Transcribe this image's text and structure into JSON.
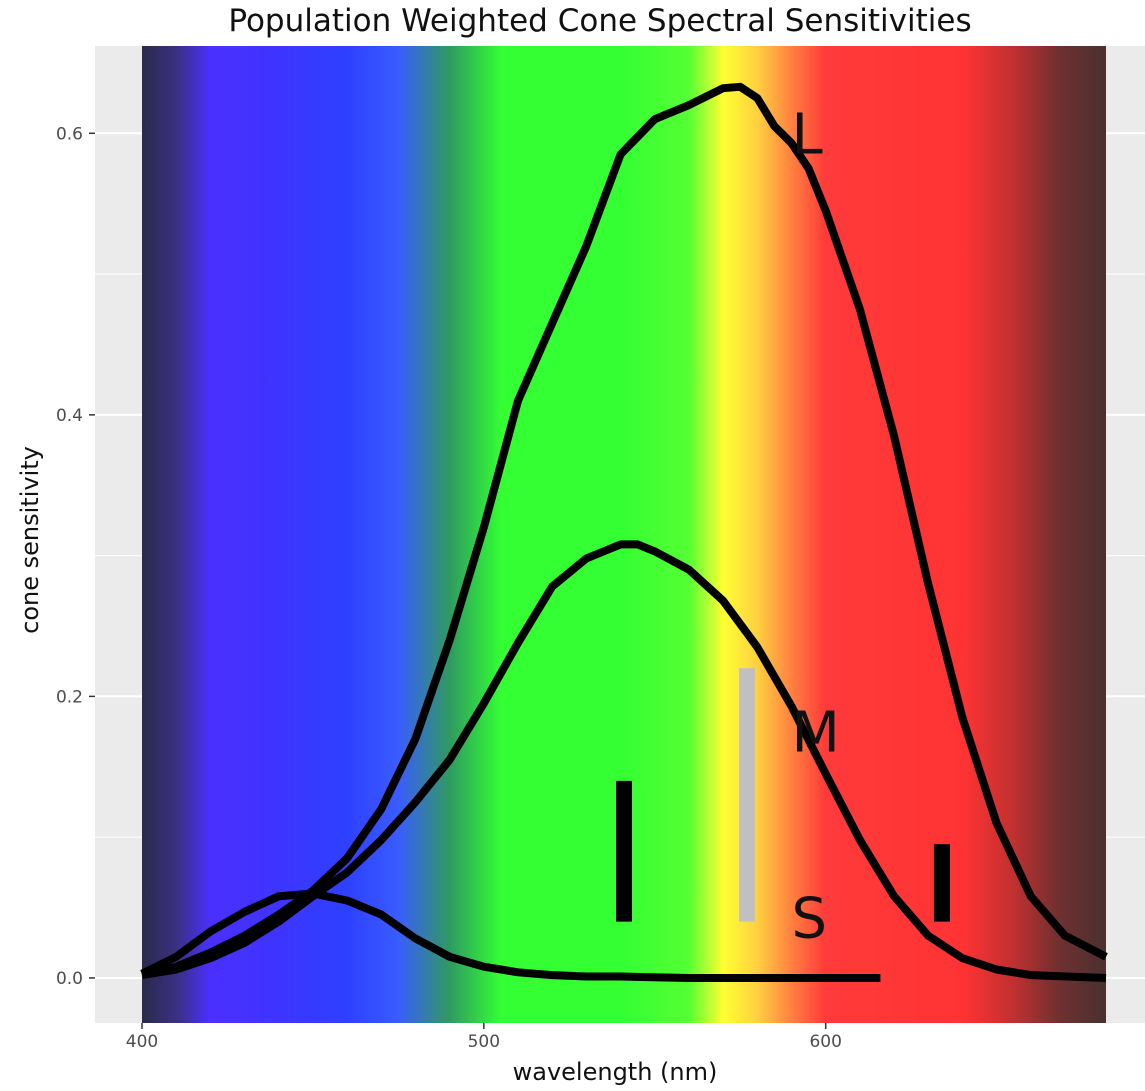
{
  "chart_data": {
    "type": "line",
    "title": "Population Weighted Cone Spectral Sensitivities",
    "xlabel": "wavelength (nm)",
    "ylabel": "cone sensitivity",
    "xlim": [
      400,
      682
    ],
    "ylim": [
      -0.032,
      0.662
    ],
    "x_ticks": [
      400,
      500,
      600
    ],
    "y_ticks": [
      0.0,
      0.2,
      0.4,
      0.6
    ],
    "x_tick_labels": [
      "400",
      "500",
      "600"
    ],
    "y_tick_labels": [
      "0.0",
      "0.2",
      "0.4",
      "0.6"
    ],
    "grid": true,
    "background_spectrum": true,
    "series": [
      {
        "name": "L",
        "color": "#000000",
        "points": [
          [
            400,
            0.002
          ],
          [
            410,
            0.008
          ],
          [
            420,
            0.018
          ],
          [
            430,
            0.03
          ],
          [
            440,
            0.045
          ],
          [
            450,
            0.062
          ],
          [
            460,
            0.085
          ],
          [
            470,
            0.12
          ],
          [
            480,
            0.17
          ],
          [
            490,
            0.24
          ],
          [
            500,
            0.32
          ],
          [
            510,
            0.41
          ],
          [
            520,
            0.465
          ],
          [
            530,
            0.52
          ],
          [
            540,
            0.585
          ],
          [
            550,
            0.61
          ],
          [
            560,
            0.62
          ],
          [
            570,
            0.632
          ],
          [
            575,
            0.633
          ],
          [
            580,
            0.625
          ],
          [
            585,
            0.605
          ],
          [
            590,
            0.593
          ],
          [
            595,
            0.575
          ],
          [
            600,
            0.545
          ],
          [
            610,
            0.475
          ],
          [
            620,
            0.385
          ],
          [
            630,
            0.28
          ],
          [
            640,
            0.185
          ],
          [
            650,
            0.11
          ],
          [
            660,
            0.058
          ],
          [
            670,
            0.03
          ],
          [
            682,
            0.015
          ]
        ]
      },
      {
        "name": "M",
        "color": "#000000",
        "points": [
          [
            400,
            0.002
          ],
          [
            410,
            0.006
          ],
          [
            420,
            0.014
          ],
          [
            430,
            0.025
          ],
          [
            440,
            0.04
          ],
          [
            450,
            0.058
          ],
          [
            460,
            0.075
          ],
          [
            470,
            0.098
          ],
          [
            480,
            0.125
          ],
          [
            490,
            0.155
          ],
          [
            500,
            0.195
          ],
          [
            510,
            0.238
          ],
          [
            520,
            0.278
          ],
          [
            530,
            0.298
          ],
          [
            540,
            0.308
          ],
          [
            545,
            0.308
          ],
          [
            550,
            0.303
          ],
          [
            560,
            0.29
          ],
          [
            570,
            0.268
          ],
          [
            580,
            0.235
          ],
          [
            590,
            0.193
          ],
          [
            600,
            0.145
          ],
          [
            610,
            0.098
          ],
          [
            620,
            0.058
          ],
          [
            630,
            0.03
          ],
          [
            640,
            0.014
          ],
          [
            650,
            0.006
          ],
          [
            660,
            0.002
          ],
          [
            682,
            0.0
          ]
        ]
      },
      {
        "name": "S",
        "color": "#000000",
        "points": [
          [
            400,
            0.003
          ],
          [
            410,
            0.015
          ],
          [
            420,
            0.033
          ],
          [
            430,
            0.047
          ],
          [
            440,
            0.058
          ],
          [
            450,
            0.06
          ],
          [
            460,
            0.055
          ],
          [
            470,
            0.045
          ],
          [
            480,
            0.028
          ],
          [
            490,
            0.015
          ],
          [
            500,
            0.008
          ],
          [
            510,
            0.004
          ],
          [
            520,
            0.002
          ],
          [
            530,
            0.001
          ],
          [
            540,
            0.001
          ],
          [
            560,
            0.0
          ],
          [
            580,
            0.0
          ],
          [
            600,
            0.0
          ],
          [
            616,
            0.0
          ]
        ]
      }
    ],
    "curve_labels": [
      {
        "text": "L",
        "x": 590,
        "y": 0.6
      },
      {
        "text": "M",
        "x": 590,
        "y": 0.175
      },
      {
        "text": "S",
        "x": 590,
        "y": 0.043
      }
    ],
    "markers": [
      {
        "x": 541,
        "y0": 0.04,
        "y1": 0.14,
        "color": "#000000"
      },
      {
        "x": 577,
        "y0": 0.04,
        "y1": 0.22,
        "color": "#c0c0c0"
      },
      {
        "x": 634,
        "y0": 0.04,
        "y1": 0.095,
        "color": "#000000"
      }
    ],
    "spectrum_stops": [
      [
        400,
        "#2a2a4a"
      ],
      [
        410,
        "#3a3080"
      ],
      [
        420,
        "#4a30ff"
      ],
      [
        440,
        "#3e34ff"
      ],
      [
        460,
        "#2e40ff"
      ],
      [
        475,
        "#3a5cff"
      ],
      [
        490,
        "#2f9a60"
      ],
      [
        505,
        "#33ff33"
      ],
      [
        540,
        "#33ff33"
      ],
      [
        560,
        "#55ff33"
      ],
      [
        570,
        "#ffff33"
      ],
      [
        580,
        "#ffd040"
      ],
      [
        590,
        "#ff8040"
      ],
      [
        600,
        "#ff3a3a"
      ],
      [
        640,
        "#ff3333"
      ],
      [
        655,
        "#c03030"
      ],
      [
        668,
        "#703030"
      ],
      [
        682,
        "#4a3030"
      ]
    ]
  }
}
